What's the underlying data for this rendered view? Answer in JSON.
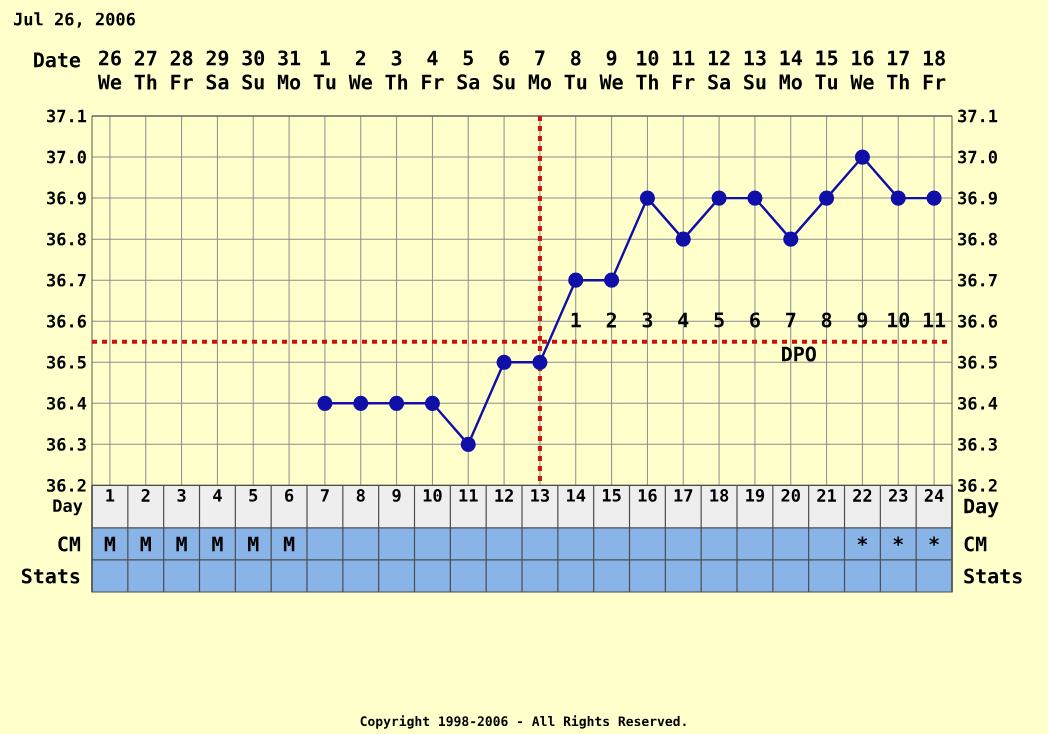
{
  "chart_data": {
    "type": "line",
    "title": "Jul 26, 2006",
    "xlabel": "Day",
    "categories": [
      "1",
      "2",
      "3",
      "4",
      "5",
      "6",
      "7",
      "8",
      "9",
      "10",
      "11",
      "12",
      "13",
      "14",
      "15",
      "16",
      "17",
      "18",
      "19",
      "20",
      "21",
      "22",
      "23",
      "24"
    ],
    "values": [
      null,
      null,
      null,
      null,
      null,
      null,
      36.4,
      36.4,
      36.4,
      36.4,
      36.3,
      36.5,
      36.5,
      36.7,
      36.7,
      36.9,
      36.8,
      36.9,
      36.9,
      36.8,
      36.9,
      37.0,
      36.9,
      36.9
    ],
    "color": "#1010a8",
    "marker": "circle",
    "grid": true,
    "ylim": [
      36.2,
      37.1
    ],
    "yticks": [
      36.2,
      36.3,
      36.4,
      36.5,
      36.6,
      36.7,
      36.8,
      36.9,
      {
        "value": 37.0,
        "label": "37.0"
      },
      37.1
    ],
    "y2lim": [
      36.2,
      37.1
    ],
    "y2ticks": [
      36.2,
      36.3,
      36.4,
      36.5,
      36.6,
      36.7,
      36.8,
      36.9,
      {
        "value": 37.0,
        "label": "37.0"
      },
      37.1
    ],
    "ref_lines": [
      {
        "axis": "y",
        "value": 36.55,
        "color": "#cc1111",
        "line_style": "dotted"
      },
      {
        "axis": "x",
        "value": "13",
        "color": "#cc1111",
        "line_style": "dotted"
      }
    ],
    "annotations": [
      "26 We",
      "27 Th",
      "28 Fr",
      "29 Sa",
      "30 Su",
      "31 Mo",
      "1 Tu",
      "2 We",
      "3 Th",
      "4 Fr",
      "5 Sa",
      "6 Su",
      "7 Mo",
      "8 Tu",
      "9 We",
      "10 Th",
      "11 Fr",
      "12 Sa",
      "13 Su",
      "14 Mo",
      "15 Tu",
      "16 We",
      "17 Th",
      "18 Fr",
      "Date",
      "1",
      "2",
      "3",
      "4",
      "5",
      "6",
      "7",
      "8",
      "9",
      "10",
      "11",
      "DPO",
      "M",
      "M",
      "M",
      "M",
      "M",
      "M",
      "*",
      "*",
      "*",
      "CM",
      "Stats",
      "Day",
      "CM",
      "Stats",
      "Copyright 1998-2006 - All Rights Reserved."
    ]
  }
}
